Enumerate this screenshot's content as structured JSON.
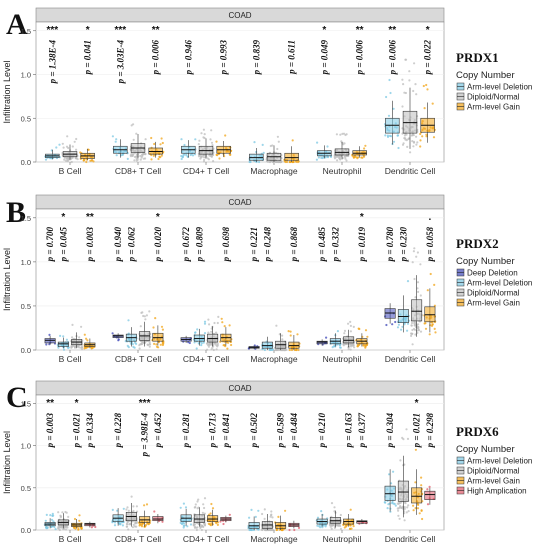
{
  "chart_data": [
    {
      "type": "box",
      "panel_letter": "A",
      "gene": "PRDX1",
      "strip_title": "COAD",
      "ylabel": "Infiltration Level",
      "ylim": [
        0,
        1.6
      ],
      "yticks": [
        "0.0",
        "0.5",
        "1.0",
        "1.5"
      ],
      "categories": [
        "B Cell",
        "CD8+ T Cell",
        "CD4+ T Cell",
        "Macrophage",
        "Neutrophil",
        "Dendritic Cell"
      ],
      "legend_title": "Copy Number",
      "groups": [
        {
          "name": "Arm-level Deletion",
          "color": "#7ec8e3"
        },
        {
          "name": "Diploid/Normal",
          "color": "#bdbdbd"
        },
        {
          "name": "Arm-level Gain",
          "color": "#f2a51a"
        }
      ],
      "annotations": [
        {
          "category": "B Cell",
          "group": "Arm-level Deletion",
          "p": "p = 1.38E-4",
          "stars": "***"
        },
        {
          "category": "B Cell",
          "group": "Arm-level Gain",
          "p": "p = 0.041",
          "stars": "*"
        },
        {
          "category": "CD8+ T Cell",
          "group": "Arm-level Deletion",
          "p": "p = 3.03E-4",
          "stars": "***"
        },
        {
          "category": "CD8+ T Cell",
          "group": "Arm-level Gain",
          "p": "p = 0.006",
          "stars": "**"
        },
        {
          "category": "CD4+ T Cell",
          "group": "Arm-level Deletion",
          "p": "p = 0.946",
          "stars": ""
        },
        {
          "category": "CD4+ T Cell",
          "group": "Arm-level Gain",
          "p": "p = 0.993",
          "stars": ""
        },
        {
          "category": "Macrophage",
          "group": "Arm-level Deletion",
          "p": "p = 0.839",
          "stars": ""
        },
        {
          "category": "Macrophage",
          "group": "Arm-level Gain",
          "p": "p = 0.611",
          "stars": ""
        },
        {
          "category": "Neutrophil",
          "group": "Arm-level Deletion",
          "p": "p = 0.049",
          "stars": "*"
        },
        {
          "category": "Neutrophil",
          "group": "Arm-level Gain",
          "p": "p = 0.006",
          "stars": "**"
        },
        {
          "category": "Dendritic Cell",
          "group": "Arm-level Deletion",
          "p": "p = 0.006",
          "stars": "**"
        },
        {
          "category": "Dendritic Cell",
          "group": "Arm-level Gain",
          "p": "p = 0.022",
          "stars": "*"
        }
      ],
      "boxes": {
        "B Cell": [
          [
            0.03,
            0.05,
            0.07,
            0.09,
            0.14
          ],
          [
            0.02,
            0.06,
            0.09,
            0.12,
            0.2
          ],
          [
            0.02,
            0.04,
            0.07,
            0.1,
            0.15
          ]
        ],
        "CD8+ T Cell": [
          [
            0.05,
            0.1,
            0.14,
            0.18,
            0.26
          ],
          [
            0.04,
            0.11,
            0.16,
            0.21,
            0.32
          ],
          [
            0.05,
            0.09,
            0.12,
            0.16,
            0.23
          ]
        ],
        "CD4+ T Cell": [
          [
            0.05,
            0.1,
            0.14,
            0.18,
            0.25
          ],
          [
            0.04,
            0.09,
            0.13,
            0.18,
            0.27
          ],
          [
            0.06,
            0.1,
            0.14,
            0.18,
            0.24
          ]
        ],
        "Macrophage": [
          [
            0.0,
            0.02,
            0.05,
            0.09,
            0.16
          ],
          [
            0.0,
            0.02,
            0.06,
            0.1,
            0.19
          ],
          [
            0.0,
            0.02,
            0.05,
            0.1,
            0.18
          ]
        ],
        "Neutrophil": [
          [
            0.04,
            0.07,
            0.1,
            0.13,
            0.19
          ],
          [
            0.03,
            0.08,
            0.11,
            0.15,
            0.23
          ],
          [
            0.05,
            0.08,
            0.1,
            0.13,
            0.18
          ]
        ],
        "Dendritic Cell": [
          [
            0.2,
            0.33,
            0.42,
            0.5,
            0.7
          ],
          [
            0.15,
            0.33,
            0.45,
            0.58,
            0.85
          ],
          [
            0.22,
            0.34,
            0.42,
            0.5,
            0.68
          ]
        ]
      }
    },
    {
      "type": "box",
      "panel_letter": "B",
      "gene": "PRDX2",
      "strip_title": "COAD",
      "ylabel": "Infiltration Level",
      "ylim": [
        0,
        1.6
      ],
      "yticks": [
        "0.0",
        "0.5",
        "1.0",
        "1.5"
      ],
      "categories": [
        "B Cell",
        "CD8+ T Cell",
        "CD4+ T Cell",
        "Macrophage",
        "Neutrophil",
        "Dendritic Cell"
      ],
      "legend_title": "Copy Number",
      "groups": [
        {
          "name": "Deep Deletion",
          "color": "#3f48b8"
        },
        {
          "name": "Arm-level Deletion",
          "color": "#7ec8e3"
        },
        {
          "name": "Diploid/Normal",
          "color": "#bdbdbd"
        },
        {
          "name": "Arm-level Gain",
          "color": "#f2a51a"
        }
      ],
      "annotations": [
        {
          "category": "B Cell",
          "group": "Deep Deletion",
          "p": "p = 0.700",
          "stars": ""
        },
        {
          "category": "B Cell",
          "group": "Arm-level Deletion",
          "p": "p = 0.045",
          "stars": "*"
        },
        {
          "category": "B Cell",
          "group": "Arm-level Gain",
          "p": "p = 0.003",
          "stars": "**"
        },
        {
          "category": "CD8+ T Cell",
          "group": "Deep Deletion",
          "p": "p = 0.940",
          "stars": ""
        },
        {
          "category": "CD8+ T Cell",
          "group": "Arm-level Deletion",
          "p": "p = 0.062",
          "stars": ""
        },
        {
          "category": "CD8+ T Cell",
          "group": "Arm-level Gain",
          "p": "p = 0.020",
          "stars": "*"
        },
        {
          "category": "CD4+ T Cell",
          "group": "Deep Deletion",
          "p": "p = 0.672",
          "stars": ""
        },
        {
          "category": "CD4+ T Cell",
          "group": "Arm-level Deletion",
          "p": "p = 0.809",
          "stars": ""
        },
        {
          "category": "CD4+ T Cell",
          "group": "Arm-level Gain",
          "p": "p = 0.698",
          "stars": ""
        },
        {
          "category": "Macrophage",
          "group": "Deep Deletion",
          "p": "p = 0.221",
          "stars": ""
        },
        {
          "category": "Macrophage",
          "group": "Arm-level Deletion",
          "p": "p = 0.248",
          "stars": ""
        },
        {
          "category": "Macrophage",
          "group": "Arm-level Gain",
          "p": "p = 0.868",
          "stars": ""
        },
        {
          "category": "Neutrophil",
          "group": "Deep Deletion",
          "p": "p = 0.485",
          "stars": ""
        },
        {
          "category": "Neutrophil",
          "group": "Arm-level Deletion",
          "p": "p = 0.332",
          "stars": ""
        },
        {
          "category": "Neutrophil",
          "group": "Arm-level Gain",
          "p": "p = 0.019",
          "stars": "*"
        },
        {
          "category": "Dendritic Cell",
          "group": "Deep Deletion",
          "p": "p = 0.780",
          "stars": ""
        },
        {
          "category": "Dendritic Cell",
          "group": "Arm-level Deletion",
          "p": "p = 0.230",
          "stars": ""
        },
        {
          "category": "Dendritic Cell",
          "group": "Arm-level Gain",
          "p": "p = 0.058",
          "stars": "."
        }
      ],
      "boxes": {
        "B Cell": [
          [
            0.06,
            0.08,
            0.11,
            0.13,
            0.16
          ],
          [
            0.02,
            0.04,
            0.07,
            0.09,
            0.14
          ],
          [
            0.02,
            0.06,
            0.09,
            0.12,
            0.2
          ],
          [
            0.02,
            0.04,
            0.06,
            0.08,
            0.13
          ]
        ],
        "CD8+ T Cell": [
          [
            0.13,
            0.14,
            0.16,
            0.17,
            0.19
          ],
          [
            0.04,
            0.1,
            0.14,
            0.18,
            0.26
          ],
          [
            0.04,
            0.11,
            0.16,
            0.21,
            0.32
          ],
          [
            0.05,
            0.1,
            0.14,
            0.19,
            0.28
          ]
        ],
        "CD4+ T Cell": [
          [
            0.08,
            0.1,
            0.12,
            0.14,
            0.16
          ],
          [
            0.05,
            0.1,
            0.13,
            0.17,
            0.24
          ],
          [
            0.04,
            0.09,
            0.13,
            0.18,
            0.27
          ],
          [
            0.05,
            0.1,
            0.14,
            0.18,
            0.26
          ]
        ],
        "Macrophage": [
          [
            0.01,
            0.02,
            0.03,
            0.04,
            0.05
          ],
          [
            0.0,
            0.02,
            0.05,
            0.09,
            0.15
          ],
          [
            0.0,
            0.02,
            0.06,
            0.1,
            0.19
          ],
          [
            0.0,
            0.02,
            0.05,
            0.09,
            0.17
          ]
        ],
        "Neutrophil": [
          [
            0.05,
            0.07,
            0.09,
            0.1,
            0.12
          ],
          [
            0.04,
            0.07,
            0.1,
            0.13,
            0.19
          ],
          [
            0.03,
            0.08,
            0.11,
            0.15,
            0.23
          ],
          [
            0.04,
            0.07,
            0.1,
            0.13,
            0.19
          ]
        ],
        "Dendritic Cell": [
          [
            0.3,
            0.36,
            0.42,
            0.47,
            0.53
          ],
          [
            0.2,
            0.31,
            0.38,
            0.46,
            0.62
          ],
          [
            0.15,
            0.33,
            0.44,
            0.57,
            0.85
          ],
          [
            0.2,
            0.32,
            0.4,
            0.49,
            0.7
          ]
        ]
      }
    },
    {
      "type": "box",
      "panel_letter": "C",
      "gene": "PRDX6",
      "strip_title": "COAD",
      "ylabel": "Infiltration Level",
      "ylim": [
        0,
        1.6
      ],
      "yticks": [
        "0.0",
        "0.5",
        "1.0",
        "1.5"
      ],
      "categories": [
        "B Cell",
        "CD8+ T Cell",
        "CD4+ T Cell",
        "Macrophage",
        "Neutrophil",
        "Dendritic Cell"
      ],
      "legend_title": "Copy Number",
      "groups": [
        {
          "name": "Arm-level Deletion",
          "color": "#7ec8e3"
        },
        {
          "name": "Diploid/Normal",
          "color": "#bdbdbd"
        },
        {
          "name": "Arm-level Gain",
          "color": "#f2a51a"
        },
        {
          "name": "High Amplication",
          "color": "#e05a6a"
        }
      ],
      "annotations": [
        {
          "category": "B Cell",
          "group": "Arm-level Deletion",
          "p": "p = 0.003",
          "stars": "**"
        },
        {
          "category": "B Cell",
          "group": "Arm-level Gain",
          "p": "p = 0.021",
          "stars": "*"
        },
        {
          "category": "B Cell",
          "group": "High Amplication",
          "p": "p = 0.334",
          "stars": ""
        },
        {
          "category": "CD8+ T Cell",
          "group": "Arm-level Deletion",
          "p": "p = 0.228",
          "stars": ""
        },
        {
          "category": "CD8+ T Cell",
          "group": "Arm-level Gain",
          "p": "p = 3.98E-4",
          "stars": "***"
        },
        {
          "category": "CD8+ T Cell",
          "group": "High Amplication",
          "p": "p = 0.452",
          "stars": ""
        },
        {
          "category": "CD4+ T Cell",
          "group": "Arm-level Deletion",
          "p": "p = 0.281",
          "stars": ""
        },
        {
          "category": "CD4+ T Cell",
          "group": "Arm-level Gain",
          "p": "p = 0.713",
          "stars": ""
        },
        {
          "category": "CD4+ T Cell",
          "group": "High Amplication",
          "p": "p = 0.841",
          "stars": ""
        },
        {
          "category": "Macrophage",
          "group": "Arm-level Deletion",
          "p": "p = 0.502",
          "stars": ""
        },
        {
          "category": "Macrophage",
          "group": "Arm-level Gain",
          "p": "p = 0.589",
          "stars": ""
        },
        {
          "category": "Macrophage",
          "group": "High Amplication",
          "p": "p = 0.484",
          "stars": ""
        },
        {
          "category": "Neutrophil",
          "group": "Arm-level Deletion",
          "p": "p = 0.210",
          "stars": ""
        },
        {
          "category": "Neutrophil",
          "group": "Arm-level Gain",
          "p": "p = 0.163",
          "stars": ""
        },
        {
          "category": "Neutrophil",
          "group": "High Amplication",
          "p": "p = 0.377",
          "stars": ""
        },
        {
          "category": "Dendritic Cell",
          "group": "Arm-level Deletion",
          "p": "p = 0.304",
          "stars": ""
        },
        {
          "category": "Dendritic Cell",
          "group": "Arm-level Gain",
          "p": "p = 0.021",
          "stars": "*"
        },
        {
          "category": "Dendritic Cell",
          "group": "High Amplication",
          "p": "p = 0.298",
          "stars": ""
        }
      ],
      "boxes": {
        "B Cell": [
          [
            0.02,
            0.05,
            0.07,
            0.09,
            0.14
          ],
          [
            0.02,
            0.06,
            0.09,
            0.12,
            0.2
          ],
          [
            0.02,
            0.04,
            0.06,
            0.08,
            0.13
          ],
          [
            0.03,
            0.05,
            0.07,
            0.08,
            0.1
          ]
        ],
        "CD8+ T Cell": [
          [
            0.05,
            0.1,
            0.14,
            0.18,
            0.26
          ],
          [
            0.04,
            0.11,
            0.16,
            0.21,
            0.32
          ],
          [
            0.04,
            0.09,
            0.12,
            0.16,
            0.23
          ],
          [
            0.08,
            0.11,
            0.13,
            0.16,
            0.19
          ]
        ],
        "CD4+ T Cell": [
          [
            0.05,
            0.1,
            0.14,
            0.18,
            0.25
          ],
          [
            0.04,
            0.09,
            0.13,
            0.18,
            0.27
          ],
          [
            0.05,
            0.1,
            0.13,
            0.17,
            0.24
          ],
          [
            0.09,
            0.11,
            0.13,
            0.15,
            0.17
          ]
        ],
        "Macrophage": [
          [
            0.0,
            0.02,
            0.05,
            0.09,
            0.16
          ],
          [
            0.0,
            0.02,
            0.06,
            0.1,
            0.19
          ],
          [
            0.0,
            0.02,
            0.05,
            0.09,
            0.17
          ],
          [
            0.02,
            0.04,
            0.06,
            0.08,
            0.11
          ]
        ],
        "Neutrophil": [
          [
            0.04,
            0.07,
            0.1,
            0.13,
            0.19
          ],
          [
            0.03,
            0.08,
            0.11,
            0.15,
            0.23
          ],
          [
            0.04,
            0.07,
            0.1,
            0.13,
            0.19
          ],
          [
            0.07,
            0.08,
            0.1,
            0.11,
            0.13
          ]
        ],
        "Dendritic Cell": [
          [
            0.22,
            0.35,
            0.43,
            0.52,
            0.72
          ],
          [
            0.15,
            0.34,
            0.45,
            0.58,
            0.88
          ],
          [
            0.18,
            0.32,
            0.4,
            0.5,
            0.72
          ],
          [
            0.3,
            0.36,
            0.42,
            0.46,
            0.5
          ]
        ]
      }
    }
  ]
}
